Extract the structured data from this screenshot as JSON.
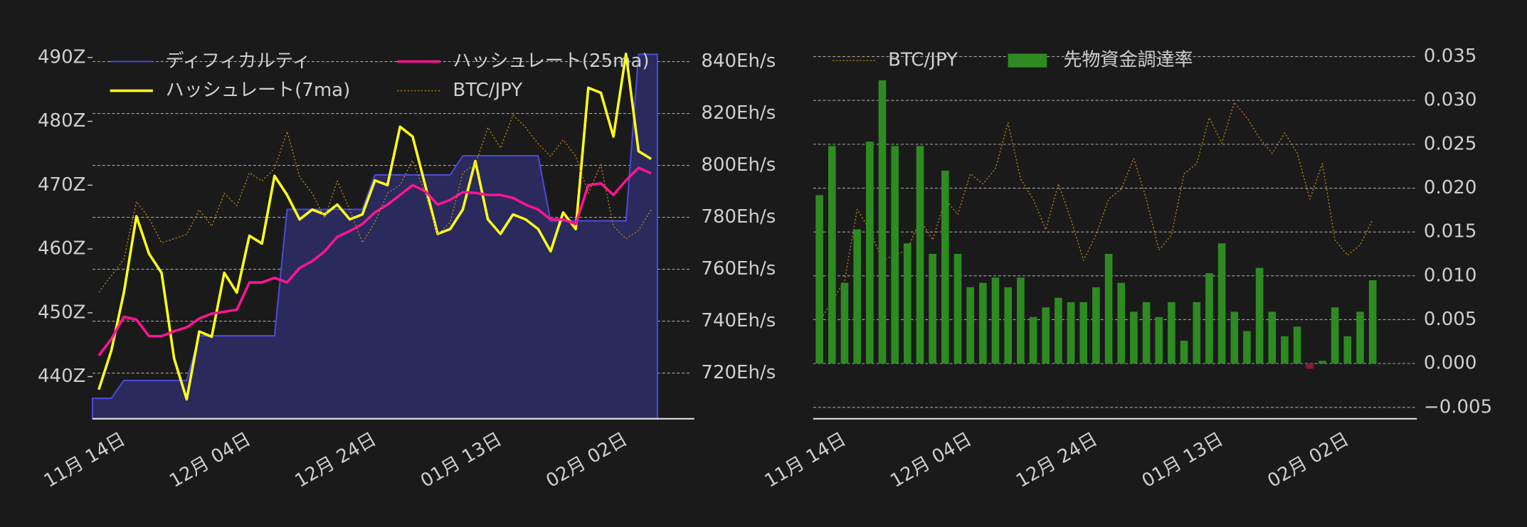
{
  "chart_data": [
    {
      "type": "line",
      "categories": [
        null,
        null,
        "11月 14日",
        null,
        null,
        null,
        null,
        null,
        null,
        null,
        null,
        null,
        "12月 04日",
        null,
        null,
        null,
        null,
        null,
        null,
        null,
        null,
        null,
        "12月 24日",
        null,
        null,
        null,
        null,
        null,
        null,
        null,
        null,
        null,
        "01月 13日",
        null,
        null,
        null,
        null,
        null,
        null,
        null,
        null,
        null,
        "02月 02日",
        null,
        null
      ],
      "series": [
        {
          "name": "ディフィカルティ",
          "type": "area",
          "color": "#4b4bd6",
          "fill": "#2a2a5c",
          "axis": "y",
          "values": [
            436.6,
            436.6,
            439.4,
            439.4,
            439.4,
            439.4,
            439.4,
            439.4,
            446.4,
            446.4,
            446.4,
            446.4,
            446.4,
            446.4,
            446.4,
            466.2,
            466.2,
            466.2,
            466.2,
            466.2,
            466.2,
            466.2,
            471.6,
            471.6,
            471.6,
            471.6,
            471.6,
            471.6,
            471.6,
            474.6,
            474.6,
            474.6,
            474.6,
            474.6,
            474.6,
            474.6,
            464.4,
            464.4,
            464.4,
            464.4,
            464.4,
            464.4,
            464.4,
            490.5,
            490.5
          ]
        },
        {
          "name": "ハッシュレート(7ma)",
          "type": "line",
          "color": "#ffff1a",
          "axis": "y2",
          "values": [
            713.6,
            728.6,
            751,
            780.4,
            766,
            758.6,
            725.6,
            709.9,
            736,
            734,
            758.6,
            751,
            772.9,
            769.9,
            796,
            788.6,
            779.2,
            783,
            781.1,
            784.9,
            779.2,
            781.1,
            794.2,
            792.4,
            814.9,
            811.1,
            792.4,
            773.6,
            775.5,
            783,
            801.7,
            779.2,
            773.6,
            781.1,
            779.2,
            775.5,
            766.9,
            781.9,
            775.5,
            829.9,
            828,
            811.1,
            843,
            805.5,
            802.5
          ]
        },
        {
          "name": "ハッシュレート(25ma)",
          "type": "line",
          "color": "#ff1493",
          "axis": "y2",
          "values": [
            726.7,
            733.1,
            741.7,
            740.6,
            734.2,
            734.2,
            736.1,
            737.6,
            741,
            742.9,
            743.6,
            744.4,
            754.9,
            754.9,
            756.7,
            754.9,
            760.5,
            763.1,
            766.9,
            772.5,
            774.7,
            777.4,
            781.9,
            784.9,
            788.6,
            792.4,
            790.1,
            784.9,
            786.7,
            789.7,
            789.4,
            788.6,
            788.6,
            787.5,
            784.9,
            783,
            779.2,
            779.2,
            777.4,
            792.4,
            793.1,
            788.6,
            794.2,
            799.1,
            796.9
          ]
        },
        {
          "name": "BTC/JPY",
          "type": "line",
          "style": "dotted",
          "color": "#b8860b",
          "values": [
            12200000,
            12600000,
            13000000,
            14400000,
            14000000,
            13400000,
            13500000,
            13600000,
            14200000,
            13800000,
            14600000,
            14300000,
            15100000,
            14900000,
            15200000,
            16100000,
            15000000,
            14600000,
            14000000,
            14900000,
            14200000,
            13400000,
            13900000,
            14600000,
            14800000,
            15400000,
            14600000,
            13600000,
            13900000,
            15100000,
            15300000,
            16200000,
            15700000,
            16500000,
            16200000,
            15800000,
            15500000,
            15900000,
            15500000,
            14600000,
            15300000,
            13800000,
            13500000,
            13700000,
            14200000
          ]
        }
      ],
      "ylim": [
        433.4,
        494.4
      ],
      "yticks": [
        {
          "value": 440,
          "label": "440Z"
        },
        {
          "value": 450,
          "label": "450Z"
        },
        {
          "value": 460,
          "label": "460Z"
        },
        {
          "value": 470,
          "label": "470Z"
        },
        {
          "value": 480,
          "label": "480Z"
        },
        {
          "value": 490,
          "label": "490Z"
        }
      ],
      "y2lim": [
        702.4,
        852.4
      ],
      "y2ticks": [
        {
          "value": 720,
          "label": "720Eh/s"
        },
        {
          "value": 740,
          "label": "740Eh/s"
        },
        {
          "value": 760,
          "label": "760Eh/s"
        },
        {
          "value": 780,
          "label": "780Eh/s"
        },
        {
          "value": 800,
          "label": "800Eh/s"
        },
        {
          "value": 820,
          "label": "820Eh/s"
        },
        {
          "value": 840,
          "label": "840Eh/s"
        }
      ],
      "grid": true
    },
    {
      "type": "bar",
      "categories": [
        null,
        null,
        "11月 14日",
        null,
        null,
        null,
        null,
        null,
        null,
        null,
        null,
        null,
        "12月 04日",
        null,
        null,
        null,
        null,
        null,
        null,
        null,
        null,
        null,
        "12月 24日",
        null,
        null,
        null,
        null,
        null,
        null,
        null,
        null,
        null,
        "01月 13日",
        null,
        null,
        null,
        null,
        null,
        null,
        null,
        null,
        null,
        "02月 02日",
        null,
        null
      ],
      "series": [
        {
          "name": "BTC/JPY",
          "type": "line",
          "style": "dotted",
          "color": "#b8860b",
          "values": [
            12200000,
            12600000,
            13000000,
            14400000,
            14000000,
            13400000,
            13500000,
            13600000,
            14200000,
            13800000,
            14600000,
            14300000,
            15100000,
            14900000,
            15200000,
            16100000,
            15000000,
            14600000,
            14000000,
            14900000,
            14200000,
            13400000,
            13900000,
            14600000,
            14800000,
            15400000,
            14600000,
            13600000,
            13900000,
            15100000,
            15300000,
            16200000,
            15700000,
            16500000,
            16200000,
            15800000,
            15500000,
            15900000,
            15500000,
            14600000,
            15300000,
            13800000,
            13500000,
            13700000,
            14200000
          ]
        },
        {
          "name": "先物資金調達率",
          "type": "bar",
          "color": "#2e8b22",
          "negative_color": "#8b1a3a",
          "axis": "y",
          "values": [
            0.0192,
            0.0248,
            0.0092,
            0.0153,
            0.0253,
            0.0323,
            0.0248,
            0.0137,
            0.0248,
            0.0125,
            0.022,
            0.0125,
            0.0087,
            0.0092,
            0.0098,
            0.0087,
            0.0098,
            0.0053,
            0.0064,
            0.0075,
            0.007,
            0.007,
            0.0087,
            0.0125,
            0.0092,
            0.0059,
            0.007,
            0.0053,
            0.007,
            0.0026,
            0.007,
            0.0103,
            0.0137,
            0.0059,
            0.0037,
            0.0109,
            0.0059,
            0.0031,
            0.0042,
            -0.0006,
            0.0003,
            0.0064,
            0.0031,
            0.0059,
            0.0095
          ]
        }
      ],
      "ylim": [
        -0.0063,
        0.0381
      ],
      "yticks": [
        {
          "value": -0.005,
          "label": "−0.005"
        },
        {
          "value": 0,
          "label": "0.000"
        },
        {
          "value": 0.005,
          "label": "0.005"
        },
        {
          "value": 0.01,
          "label": "0.010"
        },
        {
          "value": 0.015,
          "label": "0.015"
        },
        {
          "value": 0.02,
          "label": "0.020"
        },
        {
          "value": 0.025,
          "label": "0.025"
        },
        {
          "value": 0.03,
          "label": "0.030"
        },
        {
          "value": 0.035,
          "label": "0.035"
        }
      ],
      "grid": true
    }
  ]
}
